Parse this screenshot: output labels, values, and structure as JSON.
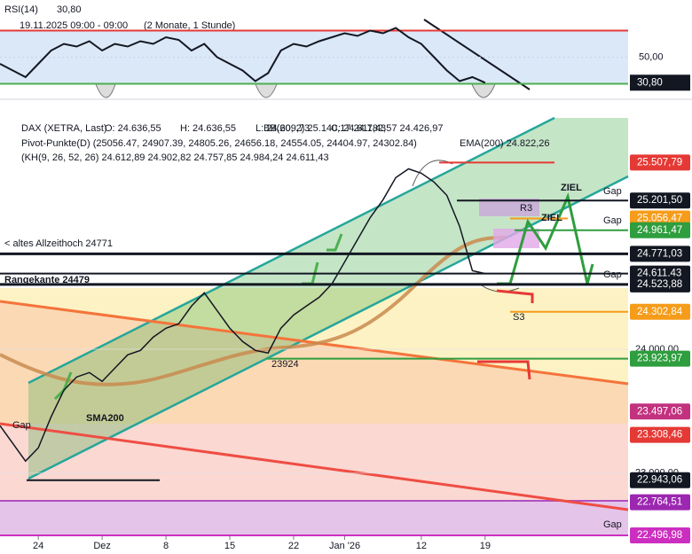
{
  "chart_data": [
    {
      "type": "line",
      "title": "RSI(14)",
      "value": 30.8,
      "value_label": "30,80",
      "subtitle": "19.11.2025 09:00 - 09:00",
      "range_text": "(2 Monate, 1 Stunde)",
      "ylim": [
        23,
        93
      ],
      "yticks": [
        {
          "value": 50,
          "label": "50,00"
        }
      ],
      "upper": 70,
      "lower": 30,
      "color": "#131722",
      "x": [
        0,
        1,
        2,
        3,
        4,
        5,
        6,
        7,
        8,
        9,
        10,
        11,
        12,
        13,
        14,
        15,
        16,
        17,
        18,
        19,
        20,
        21,
        22,
        23,
        24,
        25,
        26,
        27,
        28,
        29,
        30,
        31,
        32,
        33,
        34,
        35,
        36,
        37,
        38
      ],
      "values": [
        45,
        40,
        35,
        45,
        55,
        60,
        58,
        62,
        55,
        60,
        58,
        62,
        60,
        65,
        63,
        55,
        60,
        50,
        45,
        40,
        32,
        38,
        55,
        60,
        58,
        62,
        65,
        68,
        66,
        70,
        68,
        72,
        65,
        60,
        50,
        40,
        32,
        35,
        30.8
      ]
    },
    {
      "type": "line",
      "title": "DAX (XETRA, Last)",
      "ohlc": [
        "O: 24.636,55",
        "H: 24.636,55",
        "L: 24.609,73",
        "C: 24.611,43"
      ],
      "legend": [
        "BB(20, 2)  25.140,17  24.782,57  24.426,97",
        "Pivot-Punkte(D)  (25056.47, 24907.39, 24805.26, 24656.18, 24554.05, 24404.97, 24302.84)",
        "EMA(200)  24.822,26",
        "(KH(9, 26, 52, 26)  24.612,89  24.902,82  24.757,85  24.984,24  24.611,43"
      ],
      "color": "#131722",
      "xlim": [
        0,
        49.2
      ],
      "ylim": [
        22490,
        25890
      ],
      "xticks": [
        {
          "value": 3,
          "label": "24"
        },
        {
          "value": 8,
          "label": "Dez"
        },
        {
          "value": 13,
          "label": "8"
        },
        {
          "value": 18,
          "label": "15"
        },
        {
          "value": 23,
          "label": "22"
        },
        {
          "value": 27,
          "label": "Jan '26"
        },
        {
          "value": 33,
          "label": "12"
        },
        {
          "value": 38,
          "label": "19"
        }
      ],
      "yticks": [
        {
          "value": 24000,
          "label": "24.000,00"
        },
        {
          "value": 23000,
          "label": "23.000,00"
        }
      ],
      "x": [
        0,
        1,
        2,
        3,
        4,
        5,
        6,
        7,
        8,
        9,
        10,
        11,
        12,
        13,
        14,
        15,
        16,
        17,
        18,
        19,
        20,
        21,
        22,
        23,
        24,
        25,
        26,
        27,
        28,
        29,
        30,
        31,
        32,
        33,
        34,
        35,
        36,
        37,
        38
      ],
      "values": [
        23383,
        23240,
        23097,
        23204,
        23454,
        23669,
        23776,
        23812,
        23741,
        23848,
        23955,
        23991,
        24098,
        24170,
        24206,
        24349,
        24456,
        24313,
        24170,
        24063,
        23991,
        23970,
        24170,
        24277,
        24349,
        24420,
        24528,
        24706,
        24885,
        25064,
        25207,
        25386,
        25457,
        25422,
        25350,
        25243,
        24993,
        24635,
        24611.43
      ],
      "levels": [
        {
          "value": 25507.79,
          "label": "25.507,79",
          "color": "#e53935"
        },
        {
          "value": 25201.5,
          "label": "25.201,50",
          "color": "#131722"
        },
        {
          "value": 25056.47,
          "label": "25.056,47",
          "color": "#f59c1a"
        },
        {
          "value": 24961.47,
          "label": "24.961,47",
          "color": "#2e9e3e"
        },
        {
          "value": 24771.03,
          "label": "24.771,03",
          "color": "#131722"
        },
        {
          "value": 24611.43,
          "label": "24.611,43",
          "color": "#131722"
        },
        {
          "value": 24523.88,
          "label": "24.523,88",
          "color": "#131722"
        },
        {
          "value": 24302.84,
          "label": "24.302,84",
          "color": "#f59c1a"
        },
        {
          "value": 23923.97,
          "label": "23.923,97",
          "color": "#2e9e3e"
        },
        {
          "value": 23497.06,
          "label": "23.497,06",
          "color": "#c2327f"
        },
        {
          "value": 23308.46,
          "label": "23.308,46",
          "color": "#e53935"
        },
        {
          "value": 22943.06,
          "label": "22.943,06",
          "color": "#131722"
        },
        {
          "value": 22764.51,
          "label": "22.764,51",
          "color": "#9c27b0"
        },
        {
          "value": 22496.98,
          "label": "22.496,98",
          "color": "#cc2fbf"
        }
      ],
      "annotations": [
        "< altes Allzeithoch 24771",
        "Rangekante 24479",
        "23924",
        "SMA200",
        "ZIEL",
        "ZIEL",
        "R3",
        "S3",
        "Gap",
        "Gap",
        "Gap",
        "Gap",
        "Gap"
      ]
    }
  ]
}
